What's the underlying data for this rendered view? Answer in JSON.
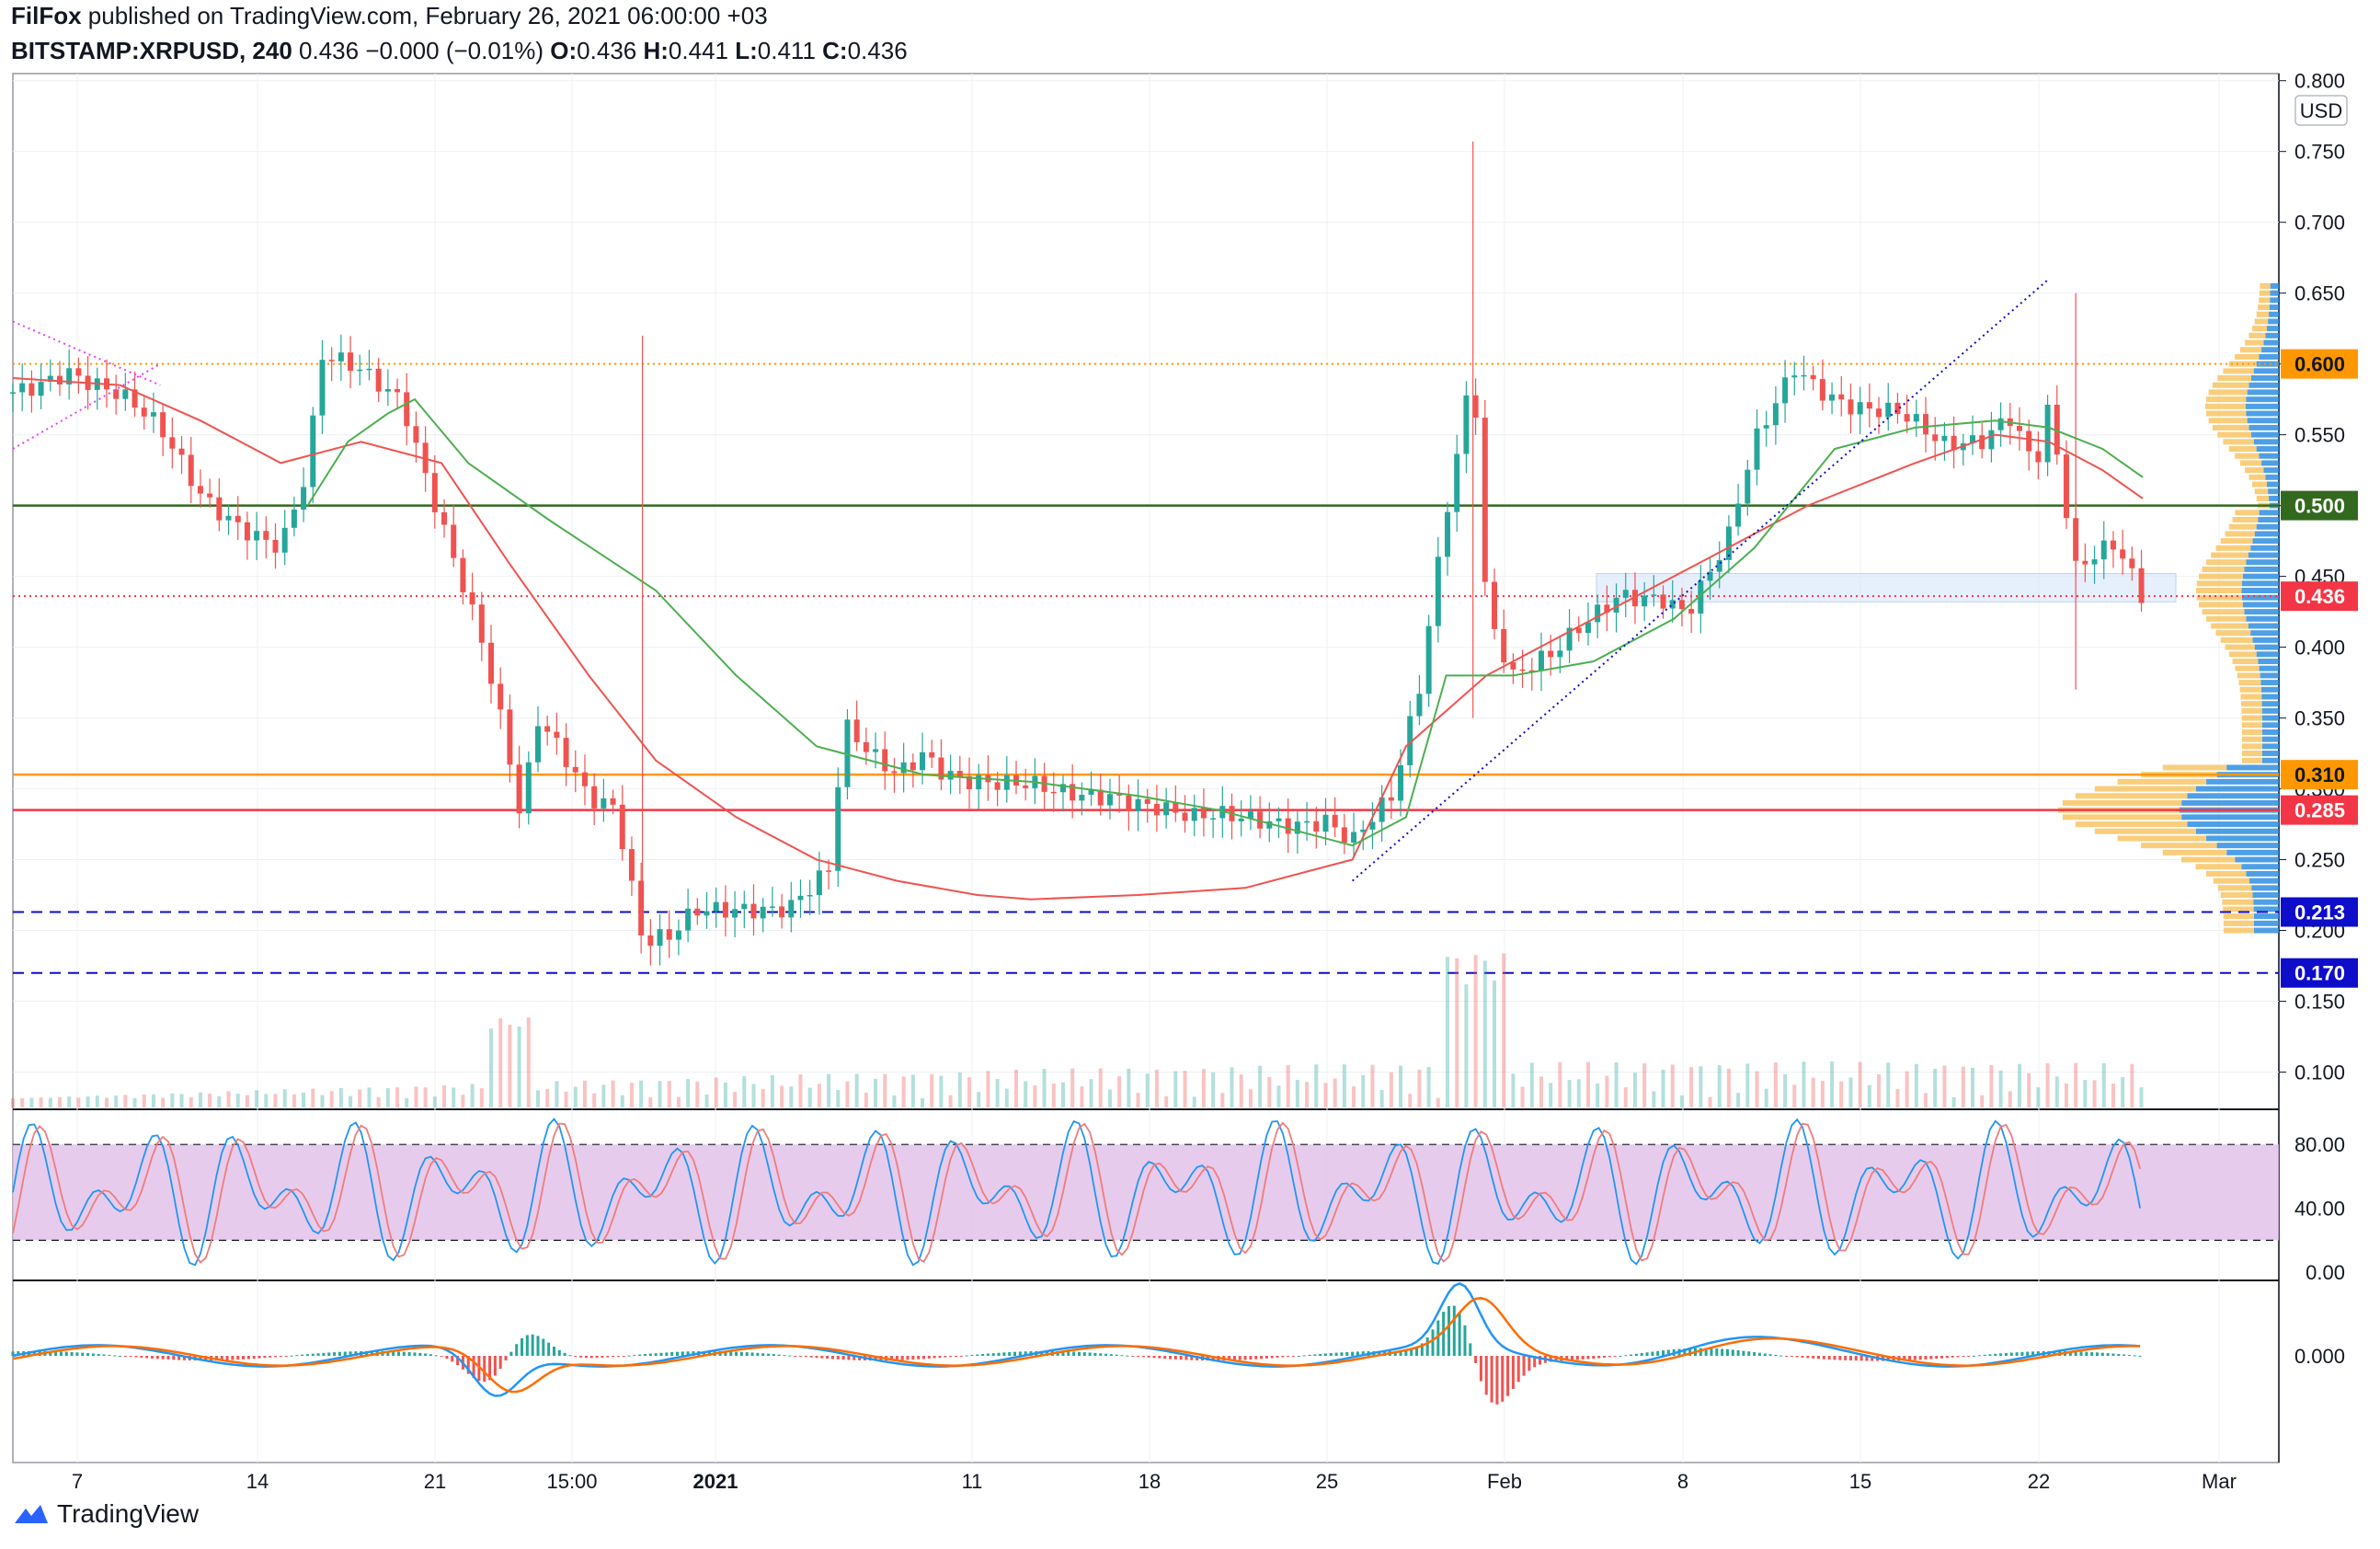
{
  "header": {
    "author": "FilFox",
    "published": "published on TradingView.com, February 26, 2021 06:00:00 +03",
    "symbol": "BITSTAMP:XRPUSD, 240",
    "last": "0.436",
    "change": "−0.000 (−0.01%)",
    "ohlc": {
      "O": "0.436",
      "H": "0.441",
      "L": "0.411",
      "C": "0.436"
    }
  },
  "footer": {
    "brand": "TradingView"
  },
  "colors": {
    "bull": "#26a69a",
    "bear": "#ef5350",
    "ma_red": "#ef5350",
    "ma_green": "#4caf50",
    "stoch_k": "#2196f3",
    "stoch_d": "#ef7c7c",
    "stoch_band": "#e1bee7",
    "macd": "#2196f3",
    "signal": "#ff6d00",
    "level_green": "#33691e",
    "level_orange": "#ff9800",
    "level_red": "#f23645",
    "level_blue": "#0d0dca",
    "vp_blue": "#2f8ee0",
    "vp_yellow": "#f7c05a"
  },
  "chart_data": {
    "type": "candlestick",
    "price_axis": {
      "unit": "USD",
      "ticks": [
        "0.800",
        "0.750",
        "0.700",
        "0.650",
        "0.600",
        "0.550",
        "0.500",
        "0.450",
        "0.400",
        "0.350",
        "0.300",
        "0.250",
        "0.200",
        "0.150",
        "0.100"
      ],
      "range": [
        0.075,
        0.805
      ]
    },
    "time_axis_labels": [
      "7",
      "14",
      "21",
      "15:00",
      "2021",
      "11",
      "18",
      "25",
      "Feb",
      "8",
      "15",
      "22",
      "Mar"
    ],
    "price_tags": [
      {
        "value": 0.6,
        "label": "0.600",
        "style": "orange"
      },
      {
        "value": 0.5,
        "label": "0.500",
        "style": "green"
      },
      {
        "value": 0.436,
        "label": "0.436",
        "style": "last"
      },
      {
        "value": 0.31,
        "label": "0.310",
        "style": "orange"
      },
      {
        "value": 0.285,
        "label": "0.285",
        "style": "red"
      },
      {
        "value": 0.213,
        "label": "0.213",
        "style": "blue"
      },
      {
        "value": 0.17,
        "label": "0.170",
        "style": "blue"
      }
    ],
    "horizontal_levels": [
      {
        "value": 0.6,
        "style": "dotted",
        "color": "orange"
      },
      {
        "value": 0.5,
        "style": "solid",
        "color": "green"
      },
      {
        "value": 0.436,
        "style": "dotted",
        "color": "red"
      },
      {
        "value": 0.31,
        "style": "solid",
        "color": "orange"
      },
      {
        "value": 0.285,
        "style": "solid",
        "color": "red"
      },
      {
        "value": 0.213,
        "style": "dashed",
        "color": "blue"
      },
      {
        "value": 0.17,
        "style": "dashed",
        "color": "blue"
      }
    ],
    "close_path": [
      [
        0,
        0.58
      ],
      [
        20,
        0.6
      ],
      [
        40,
        0.575
      ],
      [
        55,
        0.55
      ],
      [
        70,
        0.51
      ],
      [
        85,
        0.49
      ],
      [
        100,
        0.47
      ],
      [
        110,
        0.52
      ],
      [
        115,
        0.6
      ],
      [
        130,
        0.595
      ],
      [
        145,
        0.58
      ],
      [
        155,
        0.52
      ],
      [
        165,
        0.46
      ],
      [
        175,
        0.4
      ],
      [
        185,
        0.32
      ],
      [
        190,
        0.27
      ],
      [
        195,
        0.35
      ],
      [
        205,
        0.33
      ],
      [
        215,
        0.3
      ],
      [
        225,
        0.29
      ],
      [
        235,
        0.19
      ],
      [
        245,
        0.19
      ],
      [
        255,
        0.21
      ],
      [
        265,
        0.215
      ],
      [
        275,
        0.22
      ],
      [
        290,
        0.22
      ],
      [
        305,
        0.24
      ],
      [
        310,
        0.34
      ],
      [
        320,
        0.32
      ],
      [
        330,
        0.31
      ],
      [
        340,
        0.33
      ],
      [
        345,
        0.32
      ],
      [
        355,
        0.31
      ],
      [
        370,
        0.3
      ],
      [
        390,
        0.295
      ],
      [
        410,
        0.3
      ],
      [
        425,
        0.29
      ],
      [
        440,
        0.275
      ],
      [
        470,
        0.28
      ],
      [
        490,
        0.28
      ],
      [
        500,
        0.26
      ],
      [
        515,
        0.29
      ],
      [
        525,
        0.37
      ],
      [
        535,
        0.5
      ],
      [
        540,
        0.55
      ],
      [
        545,
        0.61
      ],
      [
        550,
        0.43
      ],
      [
        560,
        0.38
      ],
      [
        575,
        0.39
      ],
      [
        585,
        0.41
      ],
      [
        600,
        0.44
      ],
      [
        615,
        0.44
      ],
      [
        625,
        0.425
      ],
      [
        640,
        0.47
      ],
      [
        650,
        0.54
      ],
      [
        665,
        0.6
      ],
      [
        680,
        0.58
      ],
      [
        690,
        0.57
      ],
      [
        705,
        0.56
      ],
      [
        720,
        0.54
      ],
      [
        735,
        0.55
      ],
      [
        745,
        0.57
      ],
      [
        755,
        0.53
      ],
      [
        760,
        0.57
      ],
      [
        770,
        0.45
      ],
      [
        785,
        0.47
      ],
      [
        795,
        0.436
      ]
    ],
    "moving_averages": [
      {
        "name": "MA (red)",
        "color_key": "ma_red",
        "path": [
          [
            0,
            0.59
          ],
          [
            40,
            0.585
          ],
          [
            70,
            0.56
          ],
          [
            100,
            0.53
          ],
          [
            130,
            0.545
          ],
          [
            160,
            0.53
          ],
          [
            185,
            0.46
          ],
          [
            215,
            0.38
          ],
          [
            240,
            0.32
          ],
          [
            270,
            0.28
          ],
          [
            300,
            0.25
          ],
          [
            330,
            0.235
          ],
          [
            360,
            0.225
          ],
          [
            380,
            0.222
          ],
          [
            420,
            0.225
          ],
          [
            460,
            0.23
          ],
          [
            500,
            0.25
          ],
          [
            520,
            0.33
          ],
          [
            550,
            0.38
          ],
          [
            590,
            0.42
          ],
          [
            630,
            0.46
          ],
          [
            670,
            0.5
          ],
          [
            710,
            0.53
          ],
          [
            740,
            0.55
          ],
          [
            760,
            0.545
          ],
          [
            780,
            0.525
          ],
          [
            795,
            0.505
          ]
        ]
      },
      {
        "name": "MA (green)",
        "color_key": "ma_green",
        "path": [
          [
            110,
            0.5
          ],
          [
            125,
            0.545
          ],
          [
            140,
            0.565
          ],
          [
            150,
            0.575
          ],
          [
            170,
            0.53
          ],
          [
            200,
            0.49
          ],
          [
            240,
            0.44
          ],
          [
            270,
            0.38
          ],
          [
            300,
            0.33
          ],
          [
            340,
            0.31
          ],
          [
            380,
            0.305
          ],
          [
            420,
            0.295
          ],
          [
            450,
            0.285
          ],
          [
            480,
            0.27
          ],
          [
            500,
            0.26
          ],
          [
            520,
            0.28
          ],
          [
            535,
            0.38
          ],
          [
            560,
            0.38
          ],
          [
            590,
            0.39
          ],
          [
            620,
            0.42
          ],
          [
            650,
            0.47
          ],
          [
            680,
            0.54
          ],
          [
            710,
            0.555
          ],
          [
            740,
            0.56
          ],
          [
            760,
            0.555
          ],
          [
            780,
            0.54
          ],
          [
            795,
            0.52
          ]
        ]
      }
    ],
    "zone": {
      "from": 0.432,
      "to": 0.452
    },
    "trendlines": [
      {
        "from": [
          0,
          0.63
        ],
        "to": [
          55,
          0.585
        ],
        "color": "magenta"
      },
      {
        "from": [
          0,
          0.54
        ],
        "to": [
          55,
          0.6
        ],
        "color": "magenta"
      },
      {
        "from": [
          500,
          0.235
        ],
        "to": [
          760,
          0.66
        ],
        "color": "blue"
      }
    ],
    "stoch": {
      "band": [
        20,
        80
      ],
      "ticks": [
        "80.00",
        "40.00",
        "0.00"
      ],
      "range": [
        -4,
        102
      ]
    },
    "macd": {
      "ticks": [
        "0.000"
      ],
      "range": [
        -0.085,
        0.085
      ]
    }
  }
}
